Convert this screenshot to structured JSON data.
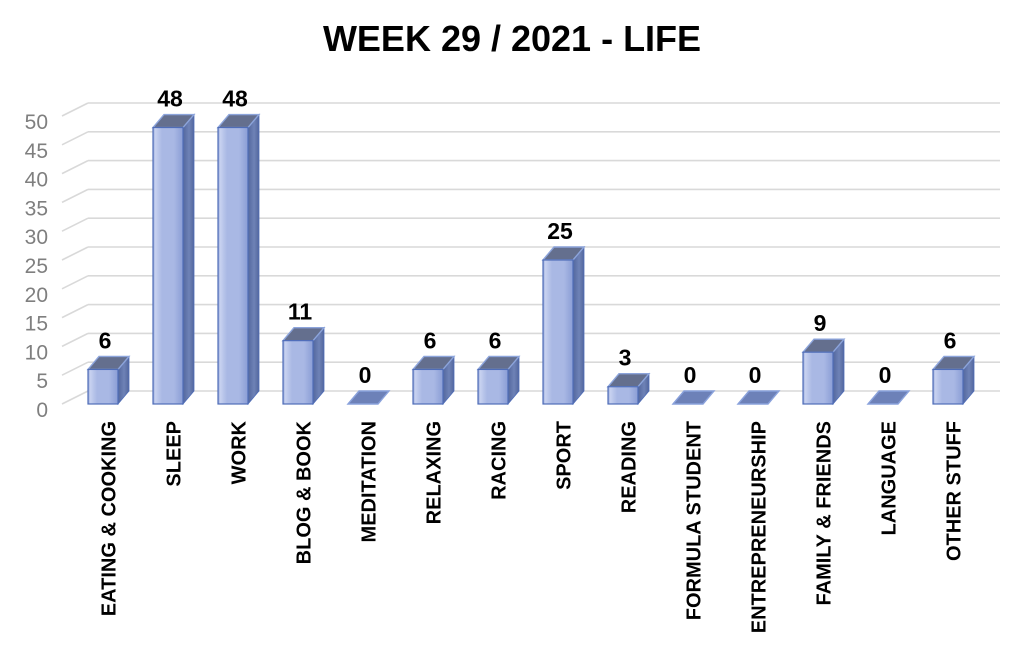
{
  "chart_data": {
    "type": "bar",
    "style": "3d-box",
    "title": "WEEK 29 / 2021 - LIFE",
    "categories": [
      "EATING & COOKING",
      "SLEEP",
      "WORK",
      "BLOG & BOOK",
      "MEDITATION",
      "RELAXING",
      "RACING",
      "SPORT",
      "READING",
      "FORMULA STUDENT",
      "ENTREPRENEURSHIP",
      "FAMILY & FRIENDS",
      "LANGUAGE",
      "OTHER STUFF"
    ],
    "values": [
      6,
      48,
      48,
      11,
      0,
      6,
      6,
      25,
      3,
      0,
      0,
      9,
      0,
      6
    ],
    "data_labels": [
      6,
      48,
      48,
      11,
      0,
      6,
      6,
      25,
      3,
      0,
      0,
      9,
      0,
      6
    ],
    "xlabel": "",
    "ylabel": "",
    "ylim": [
      0,
      50
    ],
    "yticks": [
      0,
      5,
      10,
      15,
      20,
      25,
      30,
      35,
      40,
      45,
      50
    ],
    "grid": true,
    "legend": "none",
    "colors": {
      "title": "#000000",
      "data_label": "#000000",
      "category_label": "#000000",
      "tick_label": "#7f7f7f",
      "gridline": "#d9d9d9",
      "bar_edge": "#4f6db8",
      "bar_front_light": "#c8d2f0",
      "bar_front": "#a9b8e4",
      "bar_front_dark": "#8a9dd5",
      "bar_side_dark": "#53679e",
      "bar_side": "#6e82b6",
      "bar_top": "#646f8e",
      "bar_top_edge": "#8ca4db",
      "zero_fill": "#6d81b8",
      "zero_edge": "#8aa2dc"
    }
  }
}
